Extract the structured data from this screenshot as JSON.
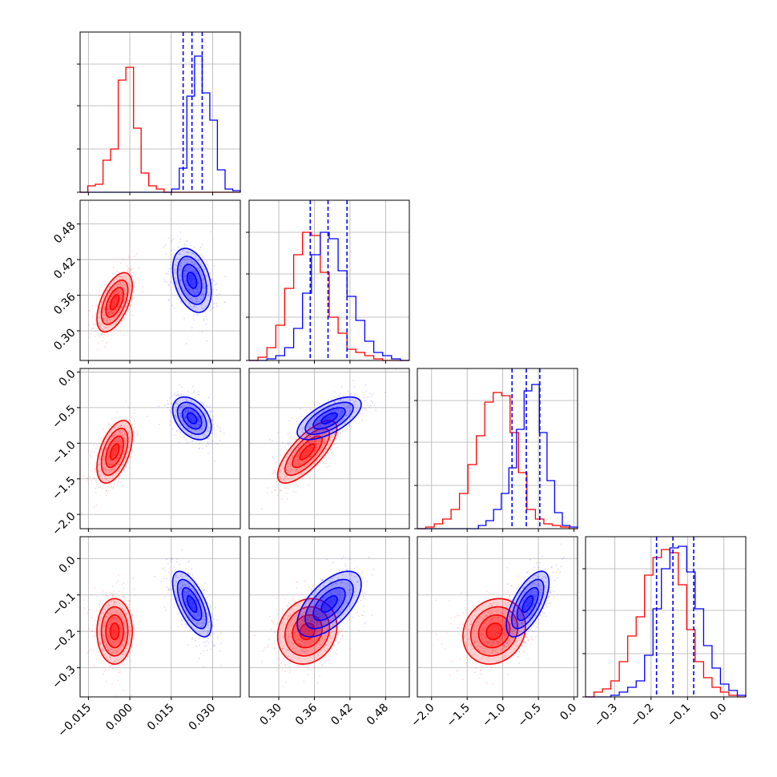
{
  "chart_data": {
    "type": "corner",
    "parameters": [
      {
        "ticks": [
          "−0.015",
          "0.000",
          "0.015",
          "0.030"
        ],
        "tick_values": [
          -0.015,
          0.0,
          0.015,
          0.03
        ],
        "range": [
          -0.018,
          0.04
        ]
      },
      {
        "ticks": [
          "0.30",
          "0.36",
          "0.42",
          "0.48"
        ],
        "tick_values": [
          0.3,
          0.36,
          0.42,
          0.48
        ],
        "range": [
          0.25,
          0.52
        ]
      },
      {
        "ticks": [
          "−2.0",
          "−1.5",
          "−1.0",
          "−0.5",
          "0.0"
        ],
        "tick_values": [
          -2.0,
          -1.5,
          -1.0,
          -0.5,
          0.0
        ],
        "range": [
          -2.2,
          0.05
        ]
      },
      {
        "ticks": [
          "−0.3",
          "−0.2",
          "−0.1",
          "0.0"
        ],
        "tick_values": [
          -0.3,
          -0.2,
          -0.1,
          0.0
        ],
        "range": [
          -0.38,
          0.06
        ]
      }
    ],
    "series": [
      {
        "color": "#ff0000",
        "hist": [
          [
            0,
            0.04,
            0.05,
            0.2,
            0.27,
            0.7,
            0.78,
            0.4,
            0.12,
            0.04,
            0.02,
            0,
            0,
            0,
            0,
            0,
            0,
            0,
            0,
            0,
            0
          ],
          [
            0,
            0.02,
            0.08,
            0.22,
            0.45,
            0.66,
            0.8,
            0.78,
            0.55,
            0.27,
            0.17,
            0.07,
            0.05,
            0.03,
            0.01,
            0,
            0,
            0
          ],
          [
            0,
            0.01,
            0.03,
            0.06,
            0.12,
            0.22,
            0.4,
            0.58,
            0.79,
            0.85,
            0.83,
            0.6,
            0.35,
            0.12,
            0.06,
            0.03,
            0.02,
            0.01,
            0
          ],
          [
            0,
            0.03,
            0.05,
            0.1,
            0.22,
            0.38,
            0.5,
            0.76,
            0.87,
            0.92,
            0.9,
            0.7,
            0.42,
            0.22,
            0.12,
            0.06,
            0.03,
            0.01,
            0
          ]
        ],
        "blobs": {
          "0-1": {
            "cx": -0.0055,
            "cy": 0.348,
            "sx": 0.0032,
            "sy": 0.025,
            "rho": 0.55
          },
          "0-2": {
            "cx": -0.0055,
            "cy": -1.12,
            "sx": 0.0032,
            "sy": 0.22,
            "rho": 0.5
          },
          "0-3": {
            "cx": -0.0055,
            "cy": -0.2,
            "sx": 0.0032,
            "sy": 0.045,
            "rho": 0.0
          },
          "1-2": {
            "cx": 0.348,
            "cy": -1.12,
            "sx": 0.025,
            "sy": 0.22,
            "rho": 0.75
          },
          "1-3": {
            "cx": 0.348,
            "cy": -0.2,
            "sx": 0.025,
            "sy": 0.045,
            "rho": 0.15
          },
          "2-3": {
            "cx": -1.12,
            "cy": -0.2,
            "sx": 0.22,
            "sy": 0.045,
            "rho": 0.15
          }
        }
      },
      {
        "color": "#0000ff",
        "hist": [
          [
            0,
            0,
            0,
            0,
            0,
            0,
            0,
            0,
            0,
            0,
            0,
            0,
            0.02,
            0.15,
            0.6,
            0.85,
            0.62,
            0.45,
            0.14,
            0.02,
            0.01
          ],
          [
            0,
            0,
            0.01,
            0.03,
            0.08,
            0.2,
            0.42,
            0.66,
            0.8,
            0.76,
            0.56,
            0.4,
            0.25,
            0.12,
            0.05,
            0.03,
            0.01,
            0
          ],
          [
            0,
            0,
            0,
            0,
            0,
            0,
            0,
            0,
            0.02,
            0.05,
            0.12,
            0.22,
            0.38,
            0.62,
            0.86,
            0.9,
            0.6,
            0.3,
            0.1,
            0.02,
            0.01
          ],
          [
            0,
            0,
            0,
            0.01,
            0.03,
            0.06,
            0.1,
            0.26,
            0.55,
            0.8,
            0.93,
            0.94,
            0.78,
            0.55,
            0.32,
            0.18,
            0.08,
            0.04,
            0.01
          ]
        ],
        "blobs": {
          "0-1": {
            "cx": 0.0225,
            "cy": 0.385,
            "sx": 0.0035,
            "sy": 0.027,
            "rho": -0.35
          },
          "0-2": {
            "cx": 0.0225,
            "cy": -0.65,
            "sx": 0.0035,
            "sy": 0.15,
            "rho": -0.4
          },
          "0-3": {
            "cx": 0.0225,
            "cy": -0.125,
            "sx": 0.0035,
            "sy": 0.045,
            "rho": -0.65
          },
          "1-2": {
            "cx": 0.385,
            "cy": -0.65,
            "sx": 0.027,
            "sy": 0.15,
            "rho": 0.65
          },
          "1-3": {
            "cx": 0.385,
            "cy": -0.125,
            "sx": 0.027,
            "sy": 0.045,
            "rho": 0.6
          },
          "2-3": {
            "cx": -0.65,
            "cy": -0.125,
            "sx": 0.15,
            "sy": 0.045,
            "rho": 0.65
          }
        }
      }
    ],
    "quantiles": [
      {
        "color": "#0000ff",
        "values": [
          0.0193,
          0.0225,
          0.0262
        ]
      },
      {
        "color": "#0000ff",
        "values": [
          0.353,
          0.383,
          0.415
        ]
      },
      {
        "color": "#0000ff",
        "values": [
          -0.87,
          -0.67,
          -0.48
        ]
      },
      {
        "color": "#0000ff",
        "values": [
          -0.185,
          -0.14,
          -0.083
        ]
      }
    ],
    "grid": true
  }
}
